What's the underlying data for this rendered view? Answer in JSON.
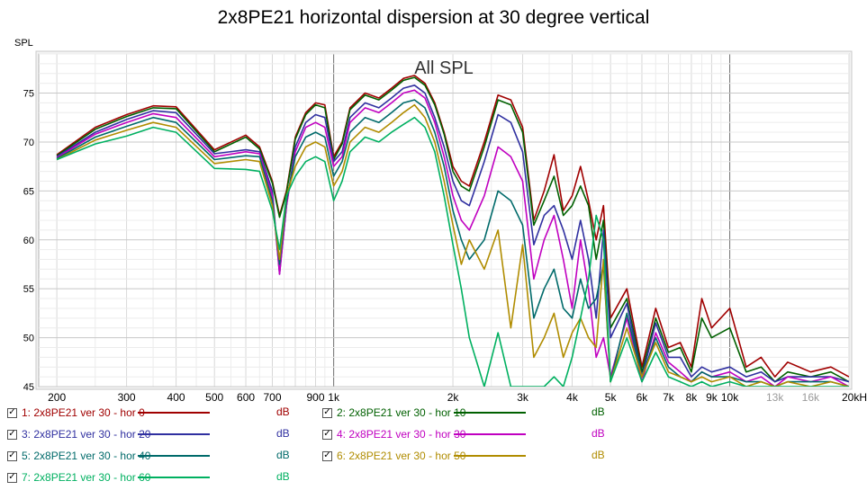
{
  "chart_data": {
    "type": "line",
    "title": "2x8PE21 horizontal dispersion at 30 degree vertical",
    "plot_label": "All SPL",
    "ylabel": "SPL",
    "xscale": "log",
    "xlim": [
      180,
      20000
    ],
    "ylim": [
      45,
      79
    ],
    "grid": true,
    "x_ticks": [
      {
        "v": 200,
        "label": "200"
      },
      {
        "v": 300,
        "label": "300"
      },
      {
        "v": 400,
        "label": "400"
      },
      {
        "v": 500,
        "label": "500"
      },
      {
        "v": 600,
        "label": "600"
      },
      {
        "v": 700,
        "label": "700"
      },
      {
        "v": 900,
        "label": "900"
      },
      {
        "v": 1000,
        "label": "1k"
      },
      {
        "v": 2000,
        "label": "2k"
      },
      {
        "v": 3000,
        "label": "3k"
      },
      {
        "v": 4000,
        "label": "4k"
      },
      {
        "v": 5000,
        "label": "5k"
      },
      {
        "v": 6000,
        "label": "6k"
      },
      {
        "v": 7000,
        "label": "7k"
      },
      {
        "v": 8000,
        "label": "8k"
      },
      {
        "v": 9000,
        "label": "9k"
      },
      {
        "v": 10000,
        "label": "10k"
      },
      {
        "v": 13000,
        "label": "13k",
        "muted": true
      },
      {
        "v": 16000,
        "label": "16k",
        "muted": true
      },
      {
        "v": 20000,
        "label": "20kHz"
      }
    ],
    "y_ticks": [
      75,
      70,
      65,
      60,
      55,
      50,
      45
    ],
    "x": [
      200,
      250,
      300,
      350,
      400,
      500,
      600,
      650,
      700,
      730,
      760,
      800,
      850,
      900,
      950,
      1000,
      1050,
      1100,
      1200,
      1300,
      1400,
      1500,
      1600,
      1700,
      1800,
      1900,
      2000,
      2100,
      2200,
      2400,
      2600,
      2800,
      3000,
      3200,
      3400,
      3600,
      3800,
      4000,
      4200,
      4400,
      4600,
      4800,
      5000,
      5500,
      6000,
      6500,
      7000,
      7500,
      8000,
      8500,
      9000,
      10000,
      11000,
      12000,
      13000,
      14000,
      16000,
      18000,
      20000
    ],
    "series": [
      {
        "name": "1: 2x8PE21 ver 30 - hor 0",
        "color": "#a00000",
        "legend_unit": "dB",
        "values": [
          68.7,
          71.5,
          72.8,
          73.7,
          73.6,
          69.2,
          70.7,
          69.5,
          66.0,
          62.5,
          65.0,
          70.5,
          73.0,
          74.0,
          73.8,
          68.5,
          70.0,
          73.5,
          75.0,
          74.5,
          75.5,
          76.5,
          76.8,
          76.0,
          74.0,
          71.0,
          67.5,
          66.0,
          65.5,
          70.0,
          74.8,
          74.3,
          71.5,
          62.0,
          65.0,
          68.7,
          63.0,
          64.5,
          67.5,
          64.0,
          60.0,
          63.5,
          52.0,
          55.0,
          47.0,
          53.0,
          49.0,
          49.5,
          47.0,
          54.0,
          51.0,
          53.0,
          47.0,
          48.0,
          46.0,
          47.5,
          46.5,
          47.0,
          46.0
        ]
      },
      {
        "name": "2: 2x8PE21 ver 30 - hor 10",
        "color": "#006000",
        "legend_unit": "dB",
        "values": [
          68.6,
          71.3,
          72.6,
          73.5,
          73.4,
          69.0,
          70.5,
          69.3,
          65.8,
          62.3,
          64.8,
          70.3,
          72.8,
          73.8,
          73.5,
          68.2,
          69.8,
          73.3,
          74.8,
          74.3,
          75.3,
          76.3,
          76.6,
          75.8,
          73.8,
          70.8,
          67.0,
          65.5,
          65.0,
          69.5,
          74.3,
          73.8,
          71.0,
          61.5,
          64.0,
          66.5,
          62.5,
          63.5,
          65.5,
          63.5,
          58.0,
          62.0,
          51.0,
          54.0,
          46.5,
          52.0,
          48.5,
          49.0,
          46.5,
          52.0,
          50.0,
          51.0,
          46.5,
          47.0,
          45.5,
          46.5,
          46.0,
          46.5,
          45.5
        ]
      },
      {
        "name": "3: 2x8PE21 ver 30 - hor 20",
        "color": "#3030a0",
        "legend_unit": "dB",
        "values": [
          68.5,
          71.0,
          72.3,
          73.2,
          73.0,
          68.8,
          69.2,
          69.0,
          65.0,
          56.5,
          63.5,
          69.5,
          72.0,
          72.8,
          72.5,
          68.0,
          69.0,
          72.5,
          74.0,
          73.5,
          74.5,
          75.5,
          75.8,
          75.0,
          72.5,
          69.5,
          66.0,
          64.0,
          63.5,
          68.0,
          72.8,
          72.0,
          69.0,
          59.5,
          62.5,
          63.5,
          61.0,
          58.0,
          62.0,
          58.0,
          52.0,
          61.0,
          50.0,
          53.5,
          46.0,
          51.5,
          48.0,
          48.0,
          46.0,
          47.0,
          46.5,
          47.0,
          46.0,
          46.5,
          45.5,
          46.0,
          46.0,
          46.0,
          45.5
        ]
      },
      {
        "name": "4: 2x8PE21 ver 30 - hor 30",
        "color": "#c000c0",
        "legend_unit": "dB",
        "values": [
          68.4,
          70.8,
          72.0,
          72.9,
          72.5,
          68.5,
          69.0,
          68.8,
          64.5,
          56.5,
          63.5,
          69.0,
          71.5,
          72.0,
          71.5,
          67.5,
          68.5,
          72.0,
          73.5,
          73.0,
          74.0,
          75.0,
          75.3,
          74.5,
          72.0,
          68.5,
          64.5,
          62.0,
          61.0,
          64.5,
          69.5,
          68.5,
          66.0,
          56.0,
          60.0,
          62.5,
          58.0,
          53.0,
          60.0,
          55.0,
          48.0,
          50.0,
          46.0,
          52.0,
          45.5,
          50.5,
          47.5,
          46.5,
          45.5,
          46.5,
          46.0,
          46.5,
          45.5,
          46.0,
          45.0,
          46.0,
          45.5,
          46.0,
          45.0
        ]
      },
      {
        "name": "5: 2x8PE21 ver 30 - hor 40",
        "color": "#006a6a",
        "legend_unit": "dB",
        "values": [
          68.3,
          70.5,
          71.6,
          72.5,
          72.0,
          68.2,
          68.6,
          68.5,
          64.0,
          57.5,
          64.0,
          68.5,
          70.5,
          71.0,
          70.5,
          66.5,
          68.0,
          71.0,
          72.5,
          72.0,
          73.0,
          74.0,
          74.3,
          73.5,
          71.0,
          67.5,
          63.0,
          60.0,
          58.0,
          60.0,
          65.0,
          64.0,
          61.5,
          52.0,
          55.0,
          57.0,
          53.0,
          52.0,
          56.0,
          53.0,
          54.0,
          57.5,
          45.5,
          52.5,
          46.0,
          50.0,
          47.0,
          46.0,
          45.5,
          46.5,
          46.0,
          46.0,
          45.5,
          45.5,
          45.0,
          45.5,
          45.5,
          45.5,
          45.0
        ]
      },
      {
        "name": "6: 2x8PE21 ver 30 - hor 50",
        "color": "#b08c00",
        "legend_unit": "dB",
        "values": [
          68.2,
          70.2,
          71.2,
          72.0,
          71.5,
          67.8,
          68.2,
          68.0,
          63.5,
          58.0,
          64.5,
          67.5,
          69.5,
          70.0,
          69.5,
          65.5,
          67.0,
          70.0,
          71.5,
          71.0,
          72.0,
          73.0,
          73.8,
          72.5,
          70.0,
          66.0,
          61.5,
          57.5,
          60.0,
          57.0,
          61.0,
          51.0,
          59.5,
          48.0,
          50.0,
          52.5,
          48.0,
          50.5,
          52.0,
          50.0,
          49.0,
          58.0,
          45.5,
          51.0,
          46.0,
          49.5,
          46.5,
          46.0,
          45.5,
          46.0,
          45.5,
          46.0,
          45.0,
          45.5,
          45.0,
          45.5,
          45.0,
          45.5,
          45.0
        ]
      },
      {
        "name": "7: 2x8PE21 ver 30 - hor 60",
        "color": "#00b060",
        "legend_unit": "dB",
        "values": [
          68.2,
          69.8,
          70.6,
          71.5,
          71.0,
          67.3,
          67.2,
          67.0,
          63.0,
          59.0,
          64.5,
          66.5,
          68.0,
          68.5,
          68.0,
          64.0,
          66.0,
          69.0,
          70.5,
          70.0,
          71.0,
          71.8,
          72.5,
          71.5,
          69.0,
          64.5,
          59.5,
          55.0,
          50.0,
          45.0,
          50.5,
          45.0,
          45.0,
          45.0,
          45.0,
          46.0,
          45.0,
          48.0,
          52.0,
          56.0,
          62.5,
          60.0,
          45.5,
          50.0,
          45.5,
          48.5,
          46.0,
          45.5,
          45.0,
          45.5,
          45.0,
          45.5,
          45.0,
          45.0,
          45.0,
          45.0,
          45.0,
          45.0,
          45.0
        ]
      }
    ]
  }
}
